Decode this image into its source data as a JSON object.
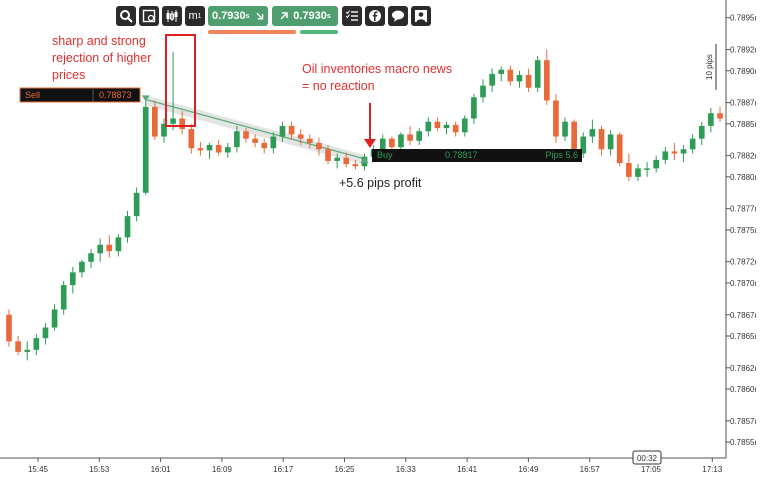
{
  "toolbar": {
    "buttons": [
      {
        "icon": "magnifier-icon"
      },
      {
        "icon": "chart-settings-icon"
      },
      {
        "icon": "candlestick-icon"
      },
      {
        "icon": "timeframe-icon",
        "label": "m",
        "sub": "1"
      }
    ],
    "price_left": "0.7930",
    "price_left_suffix": "s",
    "price_right": "0.7930",
    "price_right_suffix": "s",
    "right_icons": [
      "checklist-icon",
      "facebook-icon",
      "chat-icon",
      "user-icon"
    ],
    "colors": {
      "sell_bar": "#f0855a",
      "buy_bar": "#4fb878",
      "green_button": "#4f9e6f"
    }
  },
  "annotations": {
    "rejection": "sharp and strong\nrejection of higher\nprices",
    "oil": "Oil inventories macro news\n= no reaction",
    "profit": "+5.6 pips profit"
  },
  "trade": {
    "sell_label": "Sell",
    "sell_price": "0.78873",
    "buy_label": "Buy",
    "buy_price": "0.78817",
    "pips_label": "Pips 5.6"
  },
  "chart_data": {
    "type": "candlestick",
    "title": "",
    "y_axis": {
      "ticks": [
        0.7855,
        0.7857,
        0.786,
        0.7862,
        0.7865,
        0.7867,
        0.787,
        0.7872,
        0.7875,
        0.7877,
        0.788,
        0.7882,
        0.7885,
        0.7887,
        0.789,
        0.7892,
        0.7895
      ],
      "tick_labels": [
        "0.7855ı",
        "0.7857ı",
        "0.7860ı",
        "0.7862ı",
        "0.7865ı",
        "0.7867ı",
        "0.7870ı",
        "0.7872ı",
        "0.7875ı",
        "0.7877ı",
        "0.7880ı",
        "0.7882ı",
        "0.7885ı",
        "0.7887ı",
        "0.7890ı",
        "0.7892ı",
        "0.7895ı"
      ],
      "range": [
        0.78535,
        0.78962
      ],
      "scale_label": "10 pips"
    },
    "x_axis": {
      "tick_labels": [
        "15:45",
        "15:53",
        "16:01",
        "16:09",
        "16:17",
        "16:25",
        "16:33",
        "16:41",
        "16:49",
        "16:57",
        "17:05",
        "17:13"
      ],
      "cursor_label": "00:32"
    },
    "colors": {
      "up": "#2e9c57",
      "down": "#e86a3a"
    },
    "candles": [
      [
        0.7867,
        0.78675,
        0.7864,
        0.78645
      ],
      [
        0.78645,
        0.7865,
        0.78632,
        0.78635
      ],
      [
        0.78635,
        0.78645,
        0.78627,
        0.78637
      ],
      [
        0.78637,
        0.78652,
        0.78632,
        0.78648
      ],
      [
        0.78648,
        0.78662,
        0.78642,
        0.78658
      ],
      [
        0.78658,
        0.7868,
        0.78655,
        0.78675
      ],
      [
        0.78675,
        0.78702,
        0.7867,
        0.78698
      ],
      [
        0.78698,
        0.78715,
        0.7869,
        0.7871
      ],
      [
        0.7871,
        0.78722,
        0.78705,
        0.7872
      ],
      [
        0.7872,
        0.78732,
        0.78714,
        0.78728
      ],
      [
        0.78728,
        0.78742,
        0.7872,
        0.78736
      ],
      [
        0.78736,
        0.78745,
        0.78724,
        0.7873
      ],
      [
        0.7873,
        0.78746,
        0.78725,
        0.78743
      ],
      [
        0.78743,
        0.78768,
        0.78738,
        0.78763
      ],
      [
        0.78763,
        0.7879,
        0.78758,
        0.78785
      ],
      [
        0.78785,
        0.78872,
        0.78783,
        0.78866
      ],
      [
        0.78866,
        0.78872,
        0.78835,
        0.78838
      ],
      [
        0.78838,
        0.78855,
        0.78832,
        0.7885
      ],
      [
        0.7885,
        0.78918,
        0.78844,
        0.78855
      ],
      [
        0.78855,
        0.78862,
        0.7884,
        0.78845
      ],
      [
        0.78845,
        0.7885,
        0.78822,
        0.78827
      ],
      [
        0.78827,
        0.78833,
        0.7882,
        0.78825
      ],
      [
        0.78825,
        0.78832,
        0.78817,
        0.7883
      ],
      [
        0.7883,
        0.78835,
        0.7882,
        0.78823
      ],
      [
        0.78823,
        0.78832,
        0.78818,
        0.78828
      ],
      [
        0.78828,
        0.78848,
        0.78823,
        0.78843
      ],
      [
        0.78843,
        0.78846,
        0.78832,
        0.78836
      ],
      [
        0.78836,
        0.7884,
        0.78828,
        0.78832
      ],
      [
        0.78832,
        0.78836,
        0.78822,
        0.78827
      ],
      [
        0.78827,
        0.78842,
        0.78822,
        0.78838
      ],
      [
        0.78838,
        0.78852,
        0.78833,
        0.78848
      ],
      [
        0.78848,
        0.78852,
        0.78835,
        0.7884
      ],
      [
        0.7884,
        0.78845,
        0.7883,
        0.78836
      ],
      [
        0.78836,
        0.7884,
        0.78827,
        0.78832
      ],
      [
        0.78832,
        0.78837,
        0.7882,
        0.78826
      ],
      [
        0.78826,
        0.7883,
        0.78812,
        0.78815
      ],
      [
        0.78815,
        0.78822,
        0.78808,
        0.78818
      ],
      [
        0.78818,
        0.78823,
        0.78809,
        0.78812
      ],
      [
        0.78812,
        0.78816,
        0.78807,
        0.7881
      ],
      [
        0.7881,
        0.78822,
        0.78806,
        0.78819
      ],
      [
        0.78819,
        0.7883,
        0.78815,
        0.78826
      ],
      [
        0.78826,
        0.7884,
        0.78822,
        0.78836
      ],
      [
        0.78836,
        0.78838,
        0.78822,
        0.78828
      ],
      [
        0.78828,
        0.78842,
        0.78824,
        0.7884
      ],
      [
        0.7884,
        0.78848,
        0.7883,
        0.78834
      ],
      [
        0.78834,
        0.78846,
        0.7883,
        0.78843
      ],
      [
        0.78843,
        0.78856,
        0.78838,
        0.78852
      ],
      [
        0.78852,
        0.78856,
        0.78843,
        0.78846
      ],
      [
        0.78846,
        0.78852,
        0.7884,
        0.78849
      ],
      [
        0.78849,
        0.78852,
        0.78838,
        0.78842
      ],
      [
        0.78842,
        0.78858,
        0.78838,
        0.78855
      ],
      [
        0.78855,
        0.78878,
        0.7885,
        0.78875
      ],
      [
        0.78875,
        0.78892,
        0.7887,
        0.78886
      ],
      [
        0.78886,
        0.78902,
        0.7888,
        0.78897
      ],
      [
        0.78897,
        0.78904,
        0.7889,
        0.78901
      ],
      [
        0.78901,
        0.78905,
        0.78886,
        0.7889
      ],
      [
        0.7889,
        0.789,
        0.78884,
        0.78896
      ],
      [
        0.78896,
        0.78902,
        0.7888,
        0.78884
      ],
      [
        0.78884,
        0.78914,
        0.7888,
        0.7891
      ],
      [
        0.7891,
        0.7892,
        0.78868,
        0.78872
      ],
      [
        0.78872,
        0.78878,
        0.78832,
        0.78838
      ],
      [
        0.78838,
        0.78856,
        0.78834,
        0.78852
      ],
      [
        0.78852,
        0.78854,
        0.78818,
        0.78822
      ],
      [
        0.78822,
        0.78842,
        0.78818,
        0.78838
      ],
      [
        0.78838,
        0.78854,
        0.78832,
        0.78845
      ],
      [
        0.78845,
        0.78848,
        0.7882,
        0.78826
      ],
      [
        0.78826,
        0.78844,
        0.7882,
        0.7884
      ],
      [
        0.7884,
        0.78842,
        0.7881,
        0.78813
      ],
      [
        0.78813,
        0.78822,
        0.78796,
        0.788
      ],
      [
        0.788,
        0.78812,
        0.78796,
        0.78808
      ],
      [
        0.78808,
        0.78814,
        0.788,
        0.78808
      ],
      [
        0.78808,
        0.7882,
        0.78804,
        0.78816
      ],
      [
        0.78816,
        0.78828,
        0.78812,
        0.78824
      ],
      [
        0.78824,
        0.78832,
        0.78816,
        0.78822
      ],
      [
        0.78822,
        0.7883,
        0.78814,
        0.78826
      ],
      [
        0.78826,
        0.7884,
        0.78822,
        0.78836
      ],
      [
        0.78836,
        0.78852,
        0.7883,
        0.78848
      ],
      [
        0.78848,
        0.78865,
        0.78842,
        0.7886
      ],
      [
        0.7886,
        0.78866,
        0.78852,
        0.78855
      ]
    ]
  }
}
